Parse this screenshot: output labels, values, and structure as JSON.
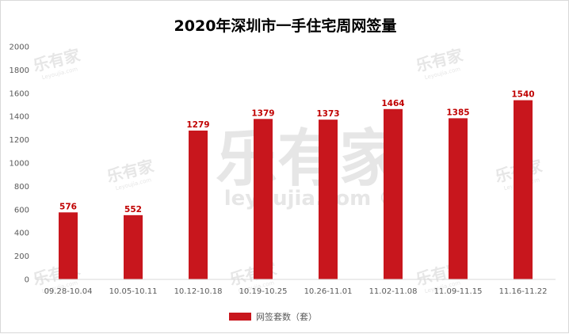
{
  "watermark": {
    "brand": "乐有家",
    "site": "Leyoujia.com",
    "site_large": "leyoujia.com ®"
  },
  "chart_data": {
    "type": "bar",
    "title": "2020年深圳市一手住宅周网签量",
    "categories": [
      "09.28-10.04",
      "10.05-10.11",
      "10.12-10.18",
      "10.19-10.25",
      "10.26-11.01",
      "11.02-11.08",
      "11.09-11.15",
      "11.16-11.22"
    ],
    "series": [
      {
        "name": "网签套数（套）",
        "values": [
          576,
          552,
          1279,
          1379,
          1373,
          1464,
          1385,
          1540
        ],
        "color": "#c8161d"
      }
    ],
    "ylim": [
      0,
      2000
    ],
    "yticks": [
      0,
      200,
      400,
      600,
      800,
      1000,
      1200,
      1400,
      1600,
      1800,
      2000
    ],
    "grid": false,
    "legend_position": "bottom",
    "data_labels": true
  }
}
